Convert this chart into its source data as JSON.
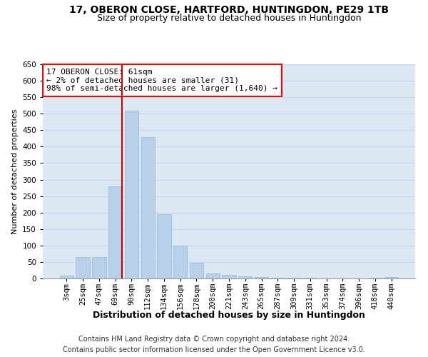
{
  "title": "17, OBERON CLOSE, HARTFORD, HUNTINGDON, PE29 1TB",
  "subtitle": "Size of property relative to detached houses in Huntingdon",
  "xlabel": "Distribution of detached houses by size in Huntingdon",
  "ylabel": "Number of detached properties",
  "footer_line1": "Contains HM Land Registry data © Crown copyright and database right 2024.",
  "footer_line2": "Contains public sector information licensed under the Open Government Licence v3.0.",
  "bar_labels": [
    "3sqm",
    "25sqm",
    "47sqm",
    "69sqm",
    "90sqm",
    "112sqm",
    "134sqm",
    "156sqm",
    "178sqm",
    "200sqm",
    "221sqm",
    "243sqm",
    "265sqm",
    "287sqm",
    "309sqm",
    "331sqm",
    "353sqm",
    "374sqm",
    "396sqm",
    "418sqm",
    "440sqm"
  ],
  "bar_values": [
    8,
    65,
    65,
    280,
    510,
    430,
    195,
    100,
    47,
    15,
    10,
    6,
    5,
    3,
    3,
    2,
    0,
    0,
    0,
    3,
    5
  ],
  "bar_color": "#b8d0e8",
  "bar_edge_color": "#90b8d8",
  "ylim": [
    0,
    650
  ],
  "yticks": [
    0,
    50,
    100,
    150,
    200,
    250,
    300,
    350,
    400,
    450,
    500,
    550,
    600,
    650
  ],
  "grid_color": "#c8d8e8",
  "bg_color": "#dce8f4",
  "annotation_line1": "17 OBERON CLOSE: 61sqm",
  "annotation_line2": "← 2% of detached houses are smaller (31)",
  "annotation_line3": "98% of semi-detached houses are larger (1,640) →",
  "vline_color": "#cc0000",
  "vline_x": 3.42,
  "title_fontsize": 10,
  "subtitle_fontsize": 9,
  "xlabel_fontsize": 9,
  "ylabel_fontsize": 8,
  "tick_fontsize": 7.5,
  "annotation_fontsize": 8,
  "footer_fontsize": 7
}
